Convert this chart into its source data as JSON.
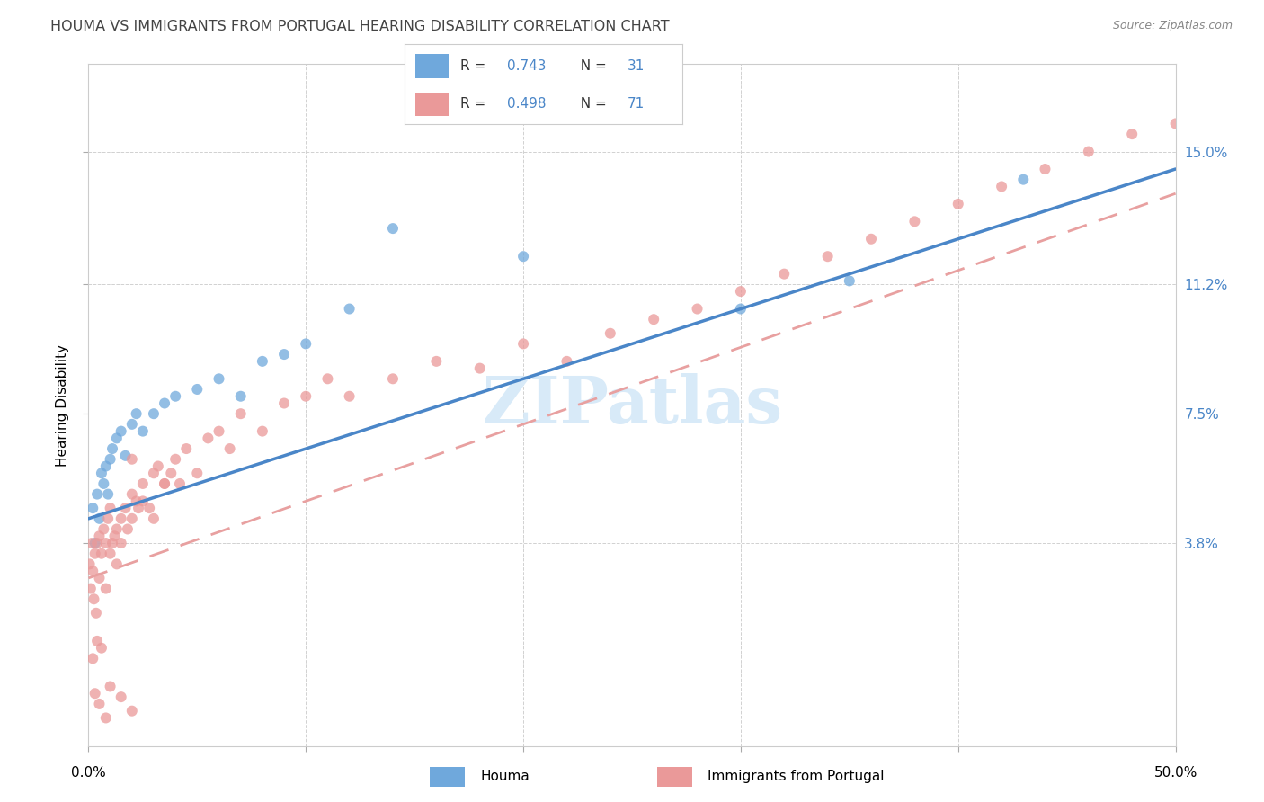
{
  "title": "HOUMA VS IMMIGRANTS FROM PORTUGAL HEARING DISABILITY CORRELATION CHART",
  "source": "Source: ZipAtlas.com",
  "ylabel": "Hearing Disability",
  "ytick_values": [
    3.8,
    7.5,
    11.2,
    15.0
  ],
  "ytick_labels": [
    "3.8%",
    "7.5%",
    "11.2%",
    "15.0%"
  ],
  "xlim": [
    0.0,
    50.0
  ],
  "ylim": [
    -2.0,
    17.5
  ],
  "houma_R": 0.743,
  "houma_N": 31,
  "portugal_R": 0.498,
  "portugal_N": 71,
  "houma_color": "#6fa8dc",
  "portugal_color": "#ea9999",
  "houma_line_color": "#4a86c8",
  "portugal_line_color": "#e8a0a0",
  "watermark_color": "#d8eaf8",
  "background_color": "#ffffff",
  "grid_color": "#cccccc",
  "title_color": "#444444",
  "source_color": "#888888",
  "tick_label_color": "#4a86c8",
  "legend_text_color": "#333333",
  "legend_value_color": "#4a86c8",
  "title_fontsize": 11.5,
  "tick_fontsize": 11,
  "legend_fontsize": 11,
  "source_fontsize": 9,
  "ylabel_fontsize": 11,
  "houma_line_y0": 4.5,
  "houma_line_y1": 14.5,
  "portugal_line_y0": 2.8,
  "portugal_line_y1": 13.8
}
